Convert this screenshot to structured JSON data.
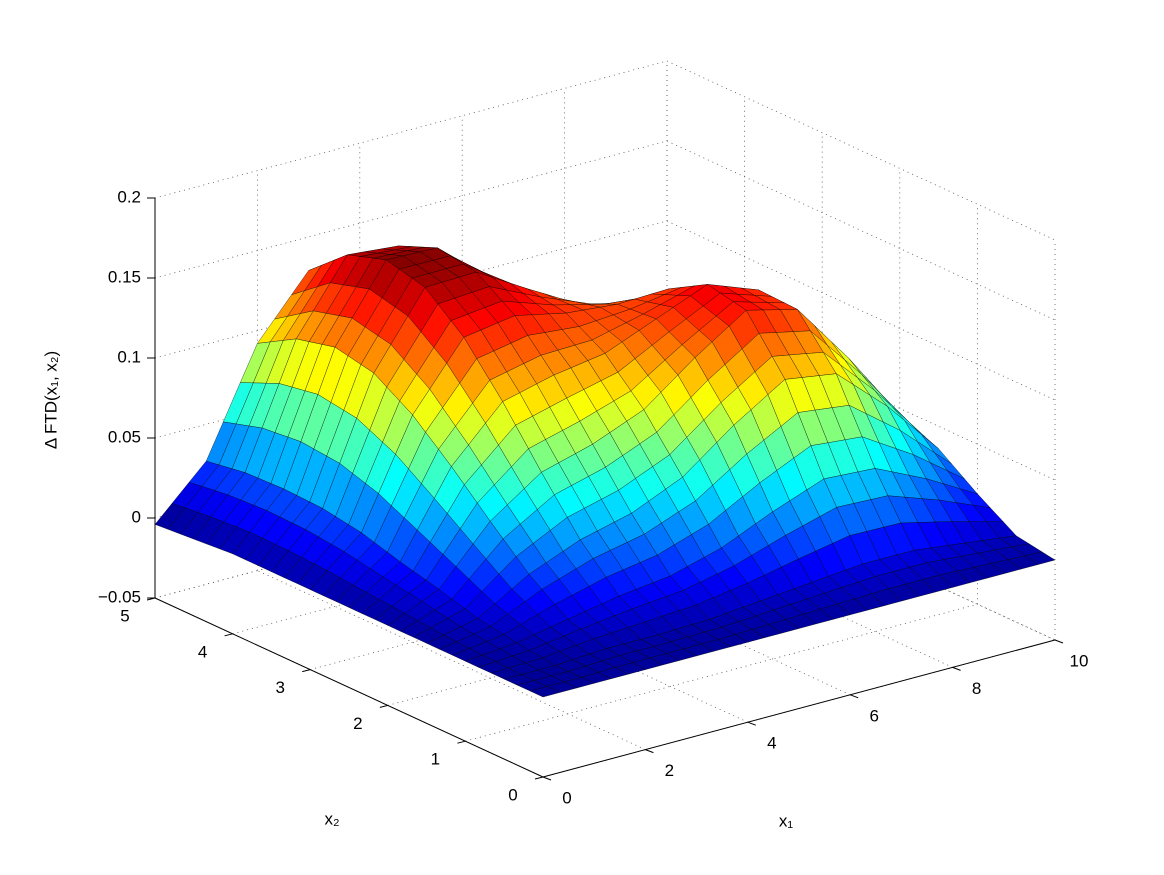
{
  "chart_data": {
    "type": "surface",
    "colormap": "jet",
    "grid": true,
    "xlabel": "x₁",
    "ylabel": "x₂",
    "zlabel": "Δ FTD(x₁, x₂)",
    "x": [
      0,
      1,
      2,
      3,
      4,
      5,
      6,
      7,
      8,
      9,
      10
    ],
    "y": [
      0,
      0.5,
      1,
      1.5,
      2,
      2.5,
      3,
      3.5,
      4,
      4.5,
      5
    ],
    "z": [
      [
        0,
        0,
        0,
        0,
        0,
        0,
        0,
        0,
        0,
        -0.002,
        -0.004
      ],
      [
        0,
        0,
        0.003,
        0.007,
        0.014,
        0.02,
        0.027,
        0.031,
        0.032,
        0.031,
        0.027
      ],
      [
        0,
        0.002,
        0.009,
        0.026,
        0.048,
        0.071,
        0.092,
        0.107,
        0.112,
        0.106,
        0.092
      ],
      [
        0,
        0.002,
        0.015,
        0.039,
        0.07,
        0.103,
        0.132,
        0.152,
        0.158,
        0.15,
        0.129
      ],
      [
        0,
        0.003,
        0.019,
        0.047,
        0.079,
        0.111,
        0.137,
        0.153,
        0.157,
        0.147,
        0.125
      ],
      [
        0,
        0.006,
        0.028,
        0.061,
        0.092,
        0.116,
        0.13,
        0.134,
        0.13,
        0.117,
        0.097
      ],
      [
        0,
        0.009,
        0.042,
        0.085,
        0.116,
        0.129,
        0.127,
        0.116,
        0.099,
        0.081,
        0.063
      ],
      [
        0,
        0.012,
        0.054,
        0.105,
        0.137,
        0.142,
        0.128,
        0.104,
        0.078,
        0.056,
        0.038
      ],
      [
        0,
        0.012,
        0.052,
        0.1,
        0.129,
        0.13,
        0.113,
        0.086,
        0.059,
        0.038,
        0.022
      ],
      [
        0,
        0.008,
        0.037,
        0.071,
        0.09,
        0.091,
        0.077,
        0.058,
        0.038,
        0.023,
        0.013
      ],
      [
        0,
        0.004,
        0.019,
        0.036,
        0.046,
        0.045,
        0.038,
        0.028,
        0.018,
        0.01,
        0.005
      ]
    ],
    "xlim": [
      0,
      10
    ],
    "xticks": [
      0,
      2,
      4,
      6,
      8,
      10
    ],
    "ylim": [
      0,
      5
    ],
    "yticks": [
      0,
      1,
      2,
      3,
      4,
      5
    ],
    "zlim": [
      -0.05,
      0.2
    ],
    "zticks": [
      {
        "value": -0.05,
        "label": "−0.05"
      },
      0,
      0.05,
      0.1,
      0.15,
      0.2
    ]
  }
}
